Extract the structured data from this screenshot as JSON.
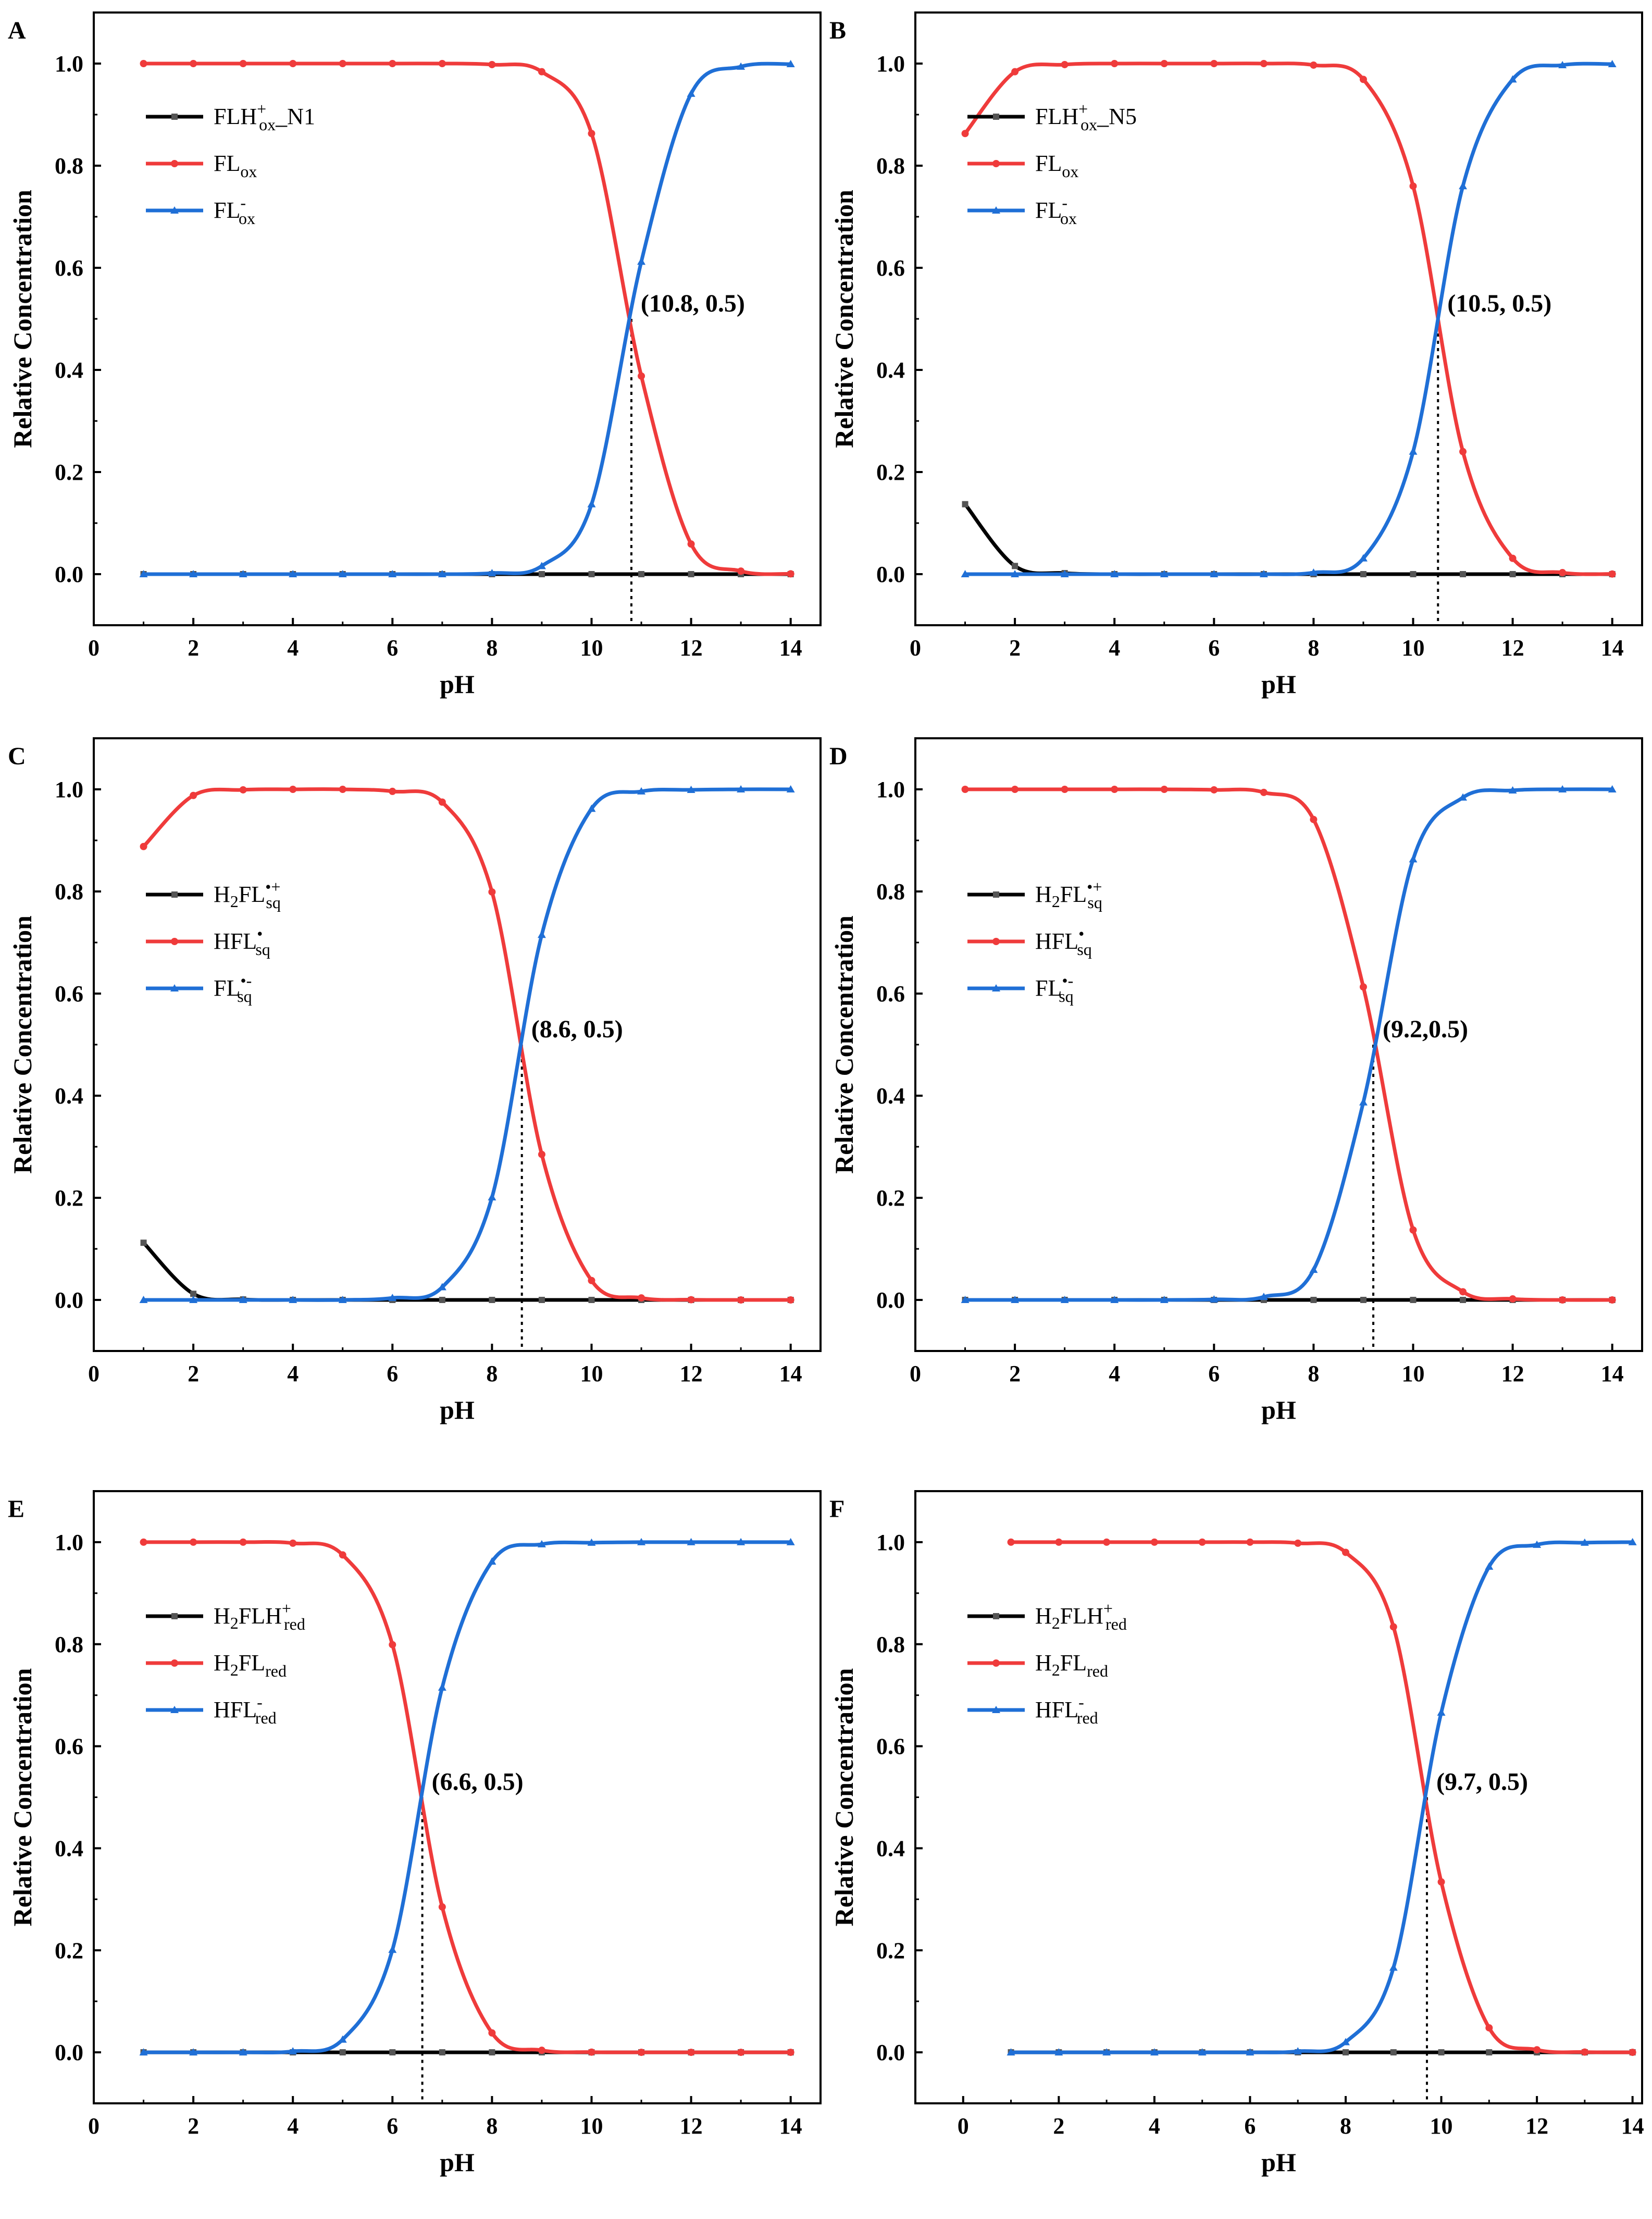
{
  "figure": {
    "x_axis_label": "pH",
    "y_axis_label": "Relative Concentration",
    "series_colors": [
      "#000000",
      "#ef3b3b",
      "#1f6fd6"
    ]
  },
  "chart_data": [
    {
      "type": "line",
      "panel": "A",
      "xlabel": "pH",
      "ylabel": "Relative Concentration",
      "xlim": [
        0,
        14.6
      ],
      "ylim": [
        -0.1,
        1.1
      ],
      "x_ticks": [
        "0",
        "2",
        "4",
        "6",
        "8",
        "10",
        "12",
        "14"
      ],
      "y_ticks": [
        "0.0",
        "0.2",
        "0.4",
        "0.6",
        "0.8",
        "1.0"
      ],
      "x": [
        1,
        2,
        3,
        4,
        5,
        6,
        7,
        8,
        9,
        10,
        11,
        12,
        13,
        14
      ],
      "series": [
        {
          "name": "FLH+ox_N1",
          "legend": {
            "base": "FLH",
            "sup": "+",
            "sub": "ox",
            "suffix": "_N1"
          },
          "color": "#000000",
          "marker": "square",
          "values": [
            0,
            0,
            0,
            0,
            0,
            0,
            0,
            0,
            0,
            0,
            0,
            0,
            0,
            0
          ]
        },
        {
          "name": "FLox",
          "legend": {
            "base": "FL",
            "sup": "",
            "sub": "ox",
            "suffix": ""
          },
          "color": "#ef3b3b",
          "marker": "circle",
          "values": [
            1,
            1,
            1,
            1,
            1,
            1,
            1,
            0.998,
            0.984,
            0.863,
            0.388,
            0.059,
            0.006,
            0.0006
          ]
        },
        {
          "name": "FL-ox",
          "legend": {
            "base": "FL",
            "sup": "-",
            "sub": "ox",
            "suffix": ""
          },
          "color": "#1f6fd6",
          "marker": "triangle",
          "values": [
            0,
            0,
            0,
            0,
            0,
            0,
            0,
            0.002,
            0.016,
            0.137,
            0.612,
            0.941,
            0.994,
            0.999
          ]
        }
      ],
      "annotation": {
        "text": "(10.8, 0.5)",
        "x": 10.8,
        "y": 0.5
      }
    },
    {
      "type": "line",
      "panel": "B",
      "xlabel": "pH",
      "ylabel": "Relative Concentration",
      "xlim": [
        0,
        14.6
      ],
      "ylim": [
        -0.1,
        1.1
      ],
      "x_ticks": [
        "0",
        "2",
        "4",
        "6",
        "8",
        "10",
        "12",
        "14"
      ],
      "y_ticks": [
        "0.0",
        "0.2",
        "0.4",
        "0.6",
        "0.8",
        "1.0"
      ],
      "x": [
        1,
        2,
        3,
        4,
        5,
        6,
        7,
        8,
        9,
        10,
        11,
        12,
        13,
        14
      ],
      "series": [
        {
          "name": "FLH+ox_N5",
          "legend": {
            "base": "FLH",
            "sup": "+",
            "sub": "ox",
            "suffix": "_N5"
          },
          "color": "#000000",
          "marker": "square",
          "values": [
            0.137,
            0.016,
            0.002,
            0,
            0,
            0,
            0,
            0,
            0,
            0,
            0,
            0,
            0,
            0
          ]
        },
        {
          "name": "FLox",
          "legend": {
            "base": "FL",
            "sup": "",
            "sub": "ox",
            "suffix": ""
          },
          "color": "#ef3b3b",
          "marker": "circle",
          "values": [
            0.863,
            0.984,
            0.998,
            1,
            1,
            1,
            1,
            0.997,
            0.969,
            0.76,
            0.24,
            0.031,
            0.003,
            0.0003
          ]
        },
        {
          "name": "FL-ox",
          "legend": {
            "base": "FL",
            "sup": "-",
            "sub": "ox",
            "suffix": ""
          },
          "color": "#1f6fd6",
          "marker": "triangle",
          "values": [
            0,
            0,
            0,
            0,
            0,
            0,
            0,
            0.003,
            0.031,
            0.24,
            0.76,
            0.969,
            0.997,
            0.999
          ]
        }
      ],
      "annotation": {
        "text": "(10.5, 0.5)",
        "x": 10.5,
        "y": 0.5
      }
    },
    {
      "type": "line",
      "panel": "C",
      "xlabel": "pH",
      "ylabel": "Relative Concentration",
      "xlim": [
        0,
        14.6
      ],
      "ylim": [
        -0.1,
        1.1
      ],
      "x_ticks": [
        "0",
        "2",
        "4",
        "6",
        "8",
        "10",
        "12",
        "14"
      ],
      "y_ticks": [
        "0.0",
        "0.2",
        "0.4",
        "0.6",
        "0.8",
        "1.0"
      ],
      "x": [
        1,
        2,
        3,
        4,
        5,
        6,
        7,
        8,
        9,
        10,
        11,
        12,
        13,
        14
      ],
      "series": [
        {
          "name": "H2FL•+sq",
          "legend": {
            "pre": "H",
            "presub": "2",
            "base": "FL",
            "sup": "•+",
            "sub": "sq",
            "suffix": ""
          },
          "color": "#000000",
          "marker": "square",
          "values": [
            0.112,
            0.012,
            0.001,
            0,
            0,
            0,
            0,
            0,
            0,
            0,
            0,
            0,
            0,
            0
          ]
        },
        {
          "name": "HFL•sq",
          "legend": {
            "base": "HFL",
            "sup": "•",
            "sub": "sq",
            "suffix": ""
          },
          "color": "#ef3b3b",
          "marker": "circle",
          "values": [
            0.888,
            0.988,
            0.999,
            1,
            1,
            0.996,
            0.975,
            0.799,
            0.285,
            0.038,
            0.004,
            0.0004,
            0,
            0
          ]
        },
        {
          "name": "FL•-sq",
          "legend": {
            "base": "FL",
            "sup": "•-",
            "sub": "sq",
            "suffix": ""
          },
          "color": "#1f6fd6",
          "marker": "triangle",
          "values": [
            0,
            0,
            0,
            0,
            0,
            0.004,
            0.025,
            0.201,
            0.715,
            0.962,
            0.996,
            0.999,
            1,
            1
          ]
        }
      ],
      "annotation": {
        "text": "(8.6, 0.5)",
        "x": 8.6,
        "y": 0.5
      }
    },
    {
      "type": "line",
      "panel": "D",
      "xlabel": "pH",
      "ylabel": "Relative Concentration",
      "xlim": [
        0,
        14.6
      ],
      "ylim": [
        -0.1,
        1.1
      ],
      "x_ticks": [
        "0",
        "2",
        "4",
        "6",
        "8",
        "10",
        "12",
        "14"
      ],
      "y_ticks": [
        "0.0",
        "0.2",
        "0.4",
        "0.6",
        "0.8",
        "1.0"
      ],
      "x": [
        1,
        2,
        3,
        4,
        5,
        6,
        7,
        8,
        9,
        10,
        11,
        12,
        13,
        14
      ],
      "series": [
        {
          "name": "H2FL•+sq",
          "legend": {
            "pre": "H",
            "presub": "2",
            "base": "FL",
            "sup": "•+",
            "sub": "sq",
            "suffix": ""
          },
          "color": "#000000",
          "marker": "square",
          "values": [
            0,
            0,
            0,
            0,
            0,
            0,
            0,
            0,
            0,
            0,
            0,
            0,
            0,
            0
          ]
        },
        {
          "name": "HFL•sq",
          "legend": {
            "base": "HFL",
            "sup": "•",
            "sub": "sq",
            "suffix": ""
          },
          "color": "#ef3b3b",
          "marker": "circle",
          "values": [
            1,
            1,
            1,
            1,
            1,
            0.999,
            0.994,
            0.941,
            0.613,
            0.137,
            0.016,
            0.002,
            0,
            0
          ]
        },
        {
          "name": "FL•-sq",
          "legend": {
            "base": "FL",
            "sup": "•-",
            "sub": "sq",
            "suffix": ""
          },
          "color": "#1f6fd6",
          "marker": "triangle",
          "values": [
            0,
            0,
            0,
            0,
            0,
            0.001,
            0.006,
            0.059,
            0.387,
            0.863,
            0.984,
            0.998,
            1,
            1
          ]
        }
      ],
      "annotation": {
        "text": "(9.2,0.5)",
        "x": 9.2,
        "y": 0.5
      }
    },
    {
      "type": "line",
      "panel": "E",
      "xlabel": "pH",
      "ylabel": "Relative Concentration",
      "xlim": [
        0,
        14.6
      ],
      "ylim": [
        -0.1,
        1.1
      ],
      "x_ticks": [
        "0",
        "2",
        "4",
        "6",
        "8",
        "10",
        "12",
        "14"
      ],
      "y_ticks": [
        "0.0",
        "0.2",
        "0.4",
        "0.6",
        "0.8",
        "1.0"
      ],
      "x": [
        1,
        2,
        3,
        4,
        5,
        6,
        7,
        8,
        9,
        10,
        11,
        12,
        13,
        14
      ],
      "series": [
        {
          "name": "H2FLH+red",
          "legend": {
            "pre": "H",
            "presub": "2",
            "base": "FLH",
            "sup": "+",
            "sub": "red",
            "suffix": ""
          },
          "color": "#000000",
          "marker": "square",
          "values": [
            0,
            0,
            0,
            0,
            0,
            0,
            0,
            0,
            0,
            0,
            0,
            0,
            0,
            0
          ]
        },
        {
          "name": "H2FLred",
          "legend": {
            "pre": "H",
            "presub": "2",
            "base": "FL",
            "sup": "",
            "sub": "red",
            "suffix": ""
          },
          "color": "#ef3b3b",
          "marker": "circle",
          "values": [
            1,
            1,
            1,
            0.998,
            0.975,
            0.799,
            0.285,
            0.038,
            0.004,
            0.0004,
            0,
            0,
            0,
            0
          ]
        },
        {
          "name": "HFL-red",
          "legend": {
            "base": "HFL",
            "sup": "-",
            "sub": "red",
            "suffix": ""
          },
          "color": "#1f6fd6",
          "marker": "triangle",
          "values": [
            0,
            0,
            0,
            0.002,
            0.025,
            0.201,
            0.715,
            0.962,
            0.996,
            0.999,
            1,
            1,
            1,
            1
          ]
        }
      ],
      "annotation": {
        "text": "(6.6, 0.5)",
        "x": 6.6,
        "y": 0.5
      }
    },
    {
      "type": "line",
      "panel": "F",
      "xlabel": "pH",
      "ylabel": "Relative Concentration",
      "xlim": [
        -1,
        14.2
      ],
      "ylim": [
        -0.1,
        1.1
      ],
      "x_ticks": [
        "0",
        "2",
        "4",
        "6",
        "8",
        "10",
        "12",
        "14"
      ],
      "y_ticks": [
        "0.0",
        "0.2",
        "0.4",
        "0.6",
        "0.8",
        "1.0"
      ],
      "x": [
        1,
        2,
        3,
        4,
        5,
        6,
        7,
        8,
        9,
        10,
        11,
        12,
        13,
        14
      ],
      "series": [
        {
          "name": "H2FLH+red",
          "legend": {
            "pre": "H",
            "presub": "2",
            "base": "FLH",
            "sup": "+",
            "sub": "red",
            "suffix": ""
          },
          "color": "#000000",
          "marker": "square",
          "values": [
            0,
            0,
            0,
            0,
            0,
            0,
            0,
            0,
            0,
            0,
            0,
            0,
            0,
            0
          ]
        },
        {
          "name": "H2FLred",
          "legend": {
            "pre": "H",
            "presub": "2",
            "base": "FL",
            "sup": "",
            "sub": "red",
            "suffix": ""
          },
          "color": "#ef3b3b",
          "marker": "circle",
          "values": [
            1,
            1,
            1,
            1,
            1,
            1,
            0.998,
            0.98,
            0.834,
            0.334,
            0.048,
            0.005,
            0.0005,
            0
          ]
        },
        {
          "name": "HFL-red",
          "legend": {
            "base": "HFL",
            "sup": "-",
            "sub": "red",
            "suffix": ""
          },
          "color": "#1f6fd6",
          "marker": "triangle",
          "values": [
            0,
            0,
            0,
            0,
            0,
            0,
            0.002,
            0.02,
            0.166,
            0.666,
            0.952,
            0.995,
            0.999,
            1
          ]
        }
      ],
      "annotation": {
        "text": "(9.7, 0.5)",
        "x": 9.7,
        "y": 0.5
      }
    }
  ]
}
